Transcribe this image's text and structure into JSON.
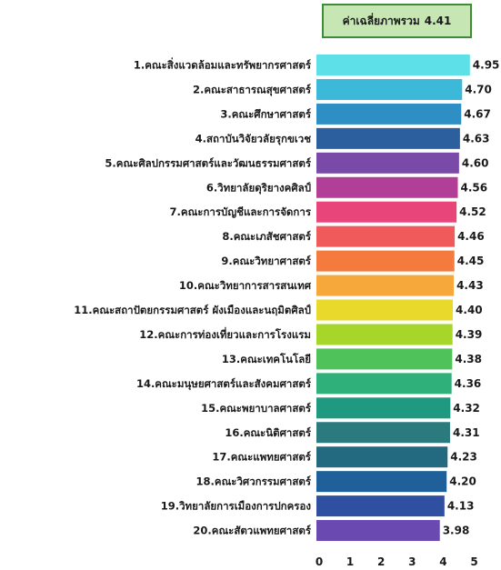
{
  "average_box": {
    "label": "ค่าเฉลี่ยภาพรวม",
    "value": "4.41"
  },
  "chart_data": {
    "type": "bar",
    "orientation": "horizontal",
    "title": "",
    "xlabel": "",
    "ylabel": "",
    "xlim": [
      0,
      5
    ],
    "xticks": [
      "0",
      "1",
      "2",
      "3",
      "4",
      "5"
    ],
    "grid": false,
    "categories": [
      "1.คณะสิ่งแวดล้อมและทรัพยากรศาสตร์",
      "2.คณะสาธารณสุขศาสตร์",
      "3.คณะศึกษาศาสตร์",
      "4.สถาบันวิจัยวลัยรุกขเวช",
      "5.คณะศิลปกรรมศาสตร์และวัฒนธรรมศาสตร์",
      "6.วิทยาลัยดุริยางคศิลป์",
      "7.คณะการบัญชีและการจัดการ",
      "8.คณะเภสัชศาสตร์",
      "9.คณะวิทยาศาสตร์",
      "10.คณะวิทยาการสารสนเทศ",
      "11.คณะสถาปัตยกรรมศาสตร์ ผังเมืองและนฤมิตศิลป์",
      "12.คณะการท่องเที่ยวและการโรงแรม",
      "13.คณะเทคโนโลยี",
      "14.คณะมนุษยศาสตร์และสังคมศาสตร์",
      "15.คณะพยาบาลศาสตร์",
      "16.คณะนิติศาสตร์",
      "17.คณะแพทยศาสตร์",
      "18.คณะวิศวกรรมศาสตร์",
      "19.วิทยาลัยการเมืองการปกครอง",
      "20.คณะสัตวแพทยศาสตร์"
    ],
    "values": [
      4.95,
      4.7,
      4.67,
      4.63,
      4.6,
      4.56,
      4.52,
      4.46,
      4.45,
      4.43,
      4.4,
      4.39,
      4.38,
      4.36,
      4.32,
      4.31,
      4.23,
      4.2,
      4.13,
      3.98
    ],
    "value_labels": [
      "4.95",
      "4.70",
      "4.67",
      "4.63",
      "4.60",
      "4.56",
      "4.52",
      "4.46",
      "4.45",
      "4.43",
      "4.40",
      "4.39",
      "4.38",
      "4.36",
      "4.32",
      "4.31",
      "4.23",
      "4.20",
      "4.13",
      "3.98"
    ],
    "colors": [
      "#5ee0e8",
      "#3cb9d8",
      "#2e8fc4",
      "#2b5f9e",
      "#7a4aa8",
      "#b13e97",
      "#e8457a",
      "#f05a5a",
      "#f47a3d",
      "#f6a83a",
      "#e9d92a",
      "#a6d629",
      "#4fc25a",
      "#2fb07a",
      "#1f9a80",
      "#2a7a7e",
      "#236a80",
      "#1f5f9a",
      "#2f4fa0",
      "#6a4ab0"
    ]
  }
}
